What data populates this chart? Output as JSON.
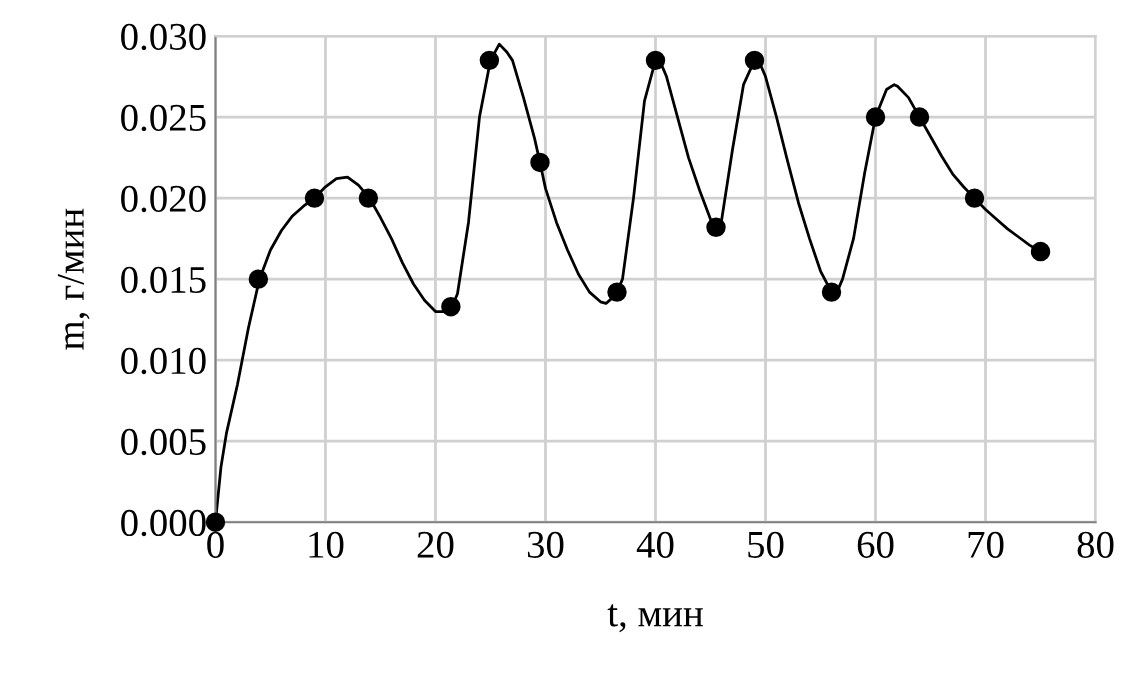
{
  "chart_data": {
    "type": "line",
    "xlabel": "t, мин",
    "ylabel": "m, г/мин",
    "series": [
      {
        "marker": "none",
        "color": "#000000",
        "x": [
          0,
          0.5,
          1,
          2,
          3,
          4,
          5,
          6,
          7,
          8,
          9,
          10,
          11,
          12,
          13,
          14,
          15,
          16,
          17,
          18,
          19,
          20,
          21,
          21.5,
          22,
          23,
          24,
          25,
          25.8,
          26.5,
          27,
          28,
          29,
          29.5,
          30,
          31,
          32,
          33,
          34,
          35,
          35.5,
          36,
          36.5,
          37,
          38,
          39,
          40,
          40.5,
          41,
          42,
          43,
          44,
          45,
          45.5,
          46,
          47,
          48,
          49,
          49.5,
          50,
          51,
          52,
          53,
          54,
          55,
          56,
          56.5,
          57,
          58,
          59,
          60,
          61,
          61.7,
          62,
          63,
          64,
          65,
          66,
          67,
          68,
          69,
          70,
          71,
          72,
          73,
          74,
          75
        ],
        "values": [
          0.0,
          0.0034,
          0.0055,
          0.0085,
          0.012,
          0.015,
          0.0168,
          0.018,
          0.0189,
          0.0195,
          0.02,
          0.0207,
          0.0212,
          0.0213,
          0.0208,
          0.02,
          0.0188,
          0.0175,
          0.016,
          0.0147,
          0.0137,
          0.013,
          0.013,
          0.0133,
          0.0141,
          0.0185,
          0.025,
          0.0285,
          0.0295,
          0.029,
          0.0285,
          0.0262,
          0.0237,
          0.0222,
          0.0206,
          0.0185,
          0.0168,
          0.0153,
          0.0142,
          0.0136,
          0.0135,
          0.0138,
          0.0142,
          0.015,
          0.02,
          0.026,
          0.0285,
          0.0283,
          0.0275,
          0.025,
          0.0225,
          0.0205,
          0.0187,
          0.0182,
          0.0186,
          0.023,
          0.027,
          0.0285,
          0.0283,
          0.0275,
          0.025,
          0.0223,
          0.0197,
          0.0175,
          0.0155,
          0.0142,
          0.0142,
          0.015,
          0.0175,
          0.0215,
          0.025,
          0.0267,
          0.027,
          0.0269,
          0.0262,
          0.025,
          0.0238,
          0.0226,
          0.0215,
          0.0207,
          0.02,
          0.0193,
          0.0187,
          0.0181,
          0.0176,
          0.0171,
          0.0167
        ]
      },
      {
        "type": "scatter",
        "marker": "circle",
        "color": "#000000",
        "x": [
          0,
          3.9,
          9,
          13.9,
          21.4,
          24.9,
          29.5,
          36.5,
          40,
          45.5,
          49,
          56,
          60,
          64,
          69,
          75
        ],
        "values": [
          0.0,
          0.015,
          0.02,
          0.02,
          0.0133,
          0.0285,
          0.0222,
          0.0142,
          0.0285,
          0.0182,
          0.0285,
          0.0142,
          0.025,
          0.025,
          0.02,
          0.0167
        ]
      }
    ],
    "xlim": [
      0,
      80
    ],
    "xticks": [
      0,
      10,
      20,
      30,
      40,
      50,
      60,
      70,
      80
    ],
    "ylim": [
      0,
      0.03
    ],
    "yticks": [
      {
        "value": 0,
        "label": "0.000"
      },
      {
        "value": 0.005,
        "label": "0.005"
      },
      {
        "value": 0.01,
        "label": "0.010"
      },
      {
        "value": 0.015,
        "label": "0.015"
      },
      {
        "value": 0.02,
        "label": "0.020"
      },
      {
        "value": 0.025,
        "label": "0.025"
      },
      {
        "value": 0.03,
        "label": "0.030"
      }
    ],
    "grid": true,
    "line_style": "solid"
  }
}
